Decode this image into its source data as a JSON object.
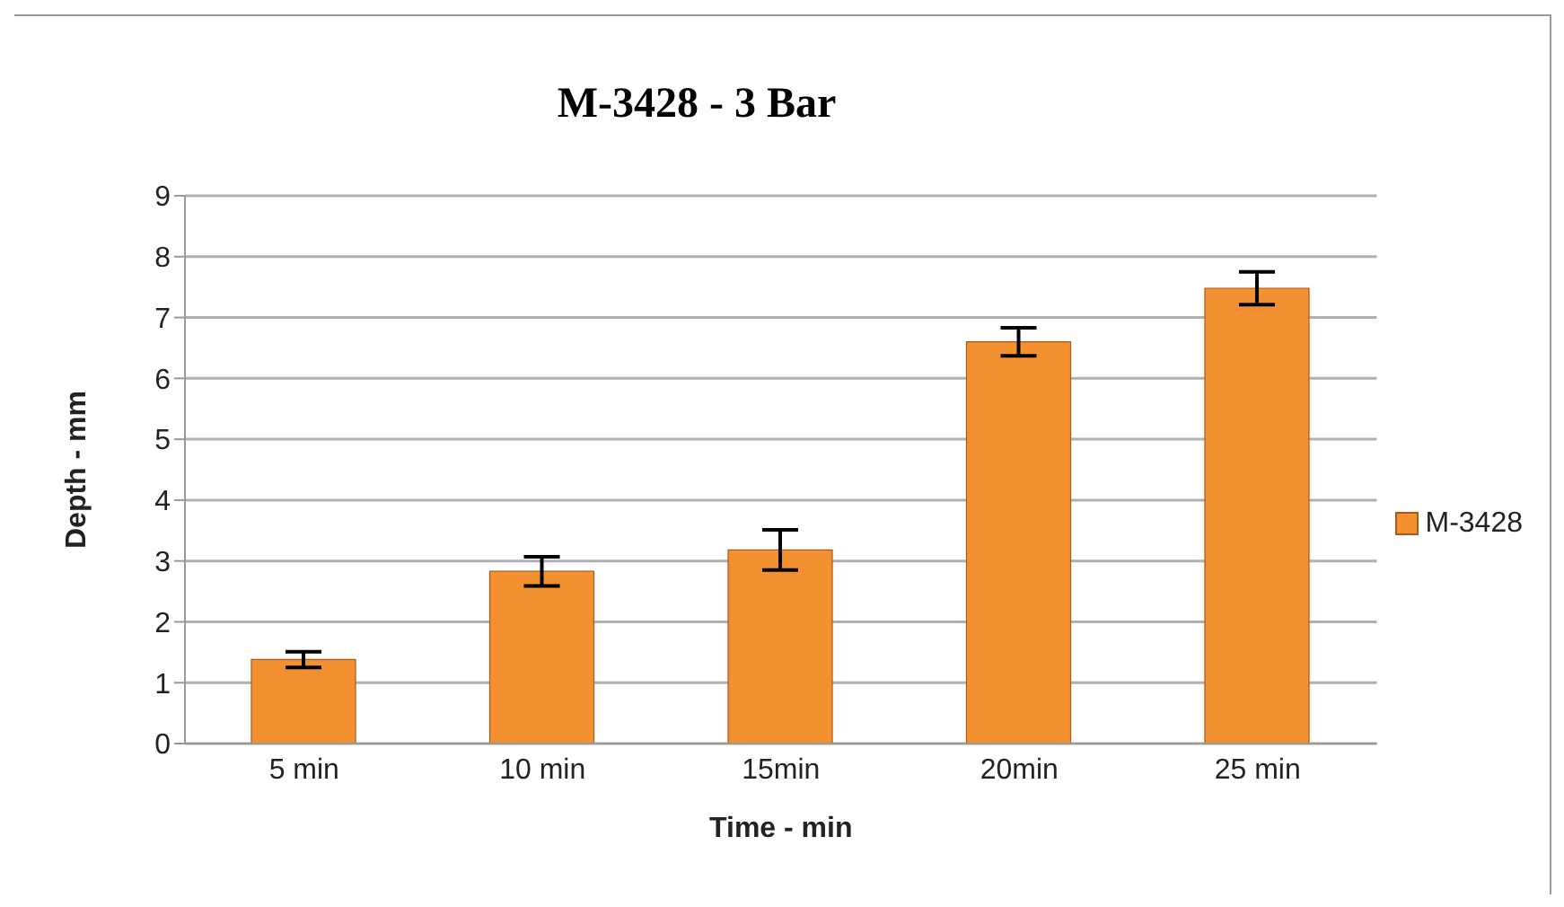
{
  "chart_data": {
    "type": "bar",
    "title": "M-3428 - 3 Bar",
    "xlabel": "Time - min",
    "ylabel": "Depth - mm",
    "categories": [
      "5 min",
      "10 min",
      "15min",
      "20min",
      "25 min"
    ],
    "series": [
      {
        "name": "M-3428",
        "color": "#f39130",
        "values": [
          1.38,
          2.83,
          3.18,
          6.6,
          7.48
        ],
        "errors": [
          0.13,
          0.24,
          0.33,
          0.23,
          0.27
        ]
      }
    ],
    "ylim": [
      0,
      9
    ],
    "yticks": [
      0,
      1,
      2,
      3,
      4,
      5,
      6,
      7,
      8,
      9
    ],
    "grid": "y",
    "legend": "right"
  }
}
